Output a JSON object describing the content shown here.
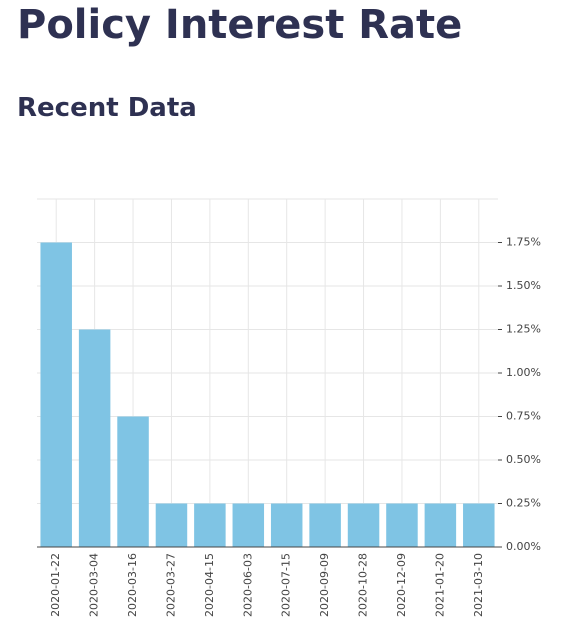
{
  "page": {
    "title": "Policy Interest Rate",
    "section_title": "Recent Data"
  },
  "colors": {
    "bar": "#7fc4e4",
    "grid": "#e6e6e6",
    "axis": "#444444",
    "heading": "#2e3152"
  },
  "chart_data": {
    "type": "bar",
    "categories": [
      "2020-01-22",
      "2020-03-04",
      "2020-03-16",
      "2020-03-27",
      "2020-04-15",
      "2020-06-03",
      "2020-07-15",
      "2020-09-09",
      "2020-10-28",
      "2020-12-09",
      "2021-01-20",
      "2021-03-10"
    ],
    "values": [
      1.75,
      1.25,
      0.75,
      0.25,
      0.25,
      0.25,
      0.25,
      0.25,
      0.25,
      0.25,
      0.25,
      0.25
    ],
    "yticks": [
      0,
      0.25,
      0.5,
      0.75,
      1.0,
      1.25,
      1.5,
      1.75
    ],
    "ytick_labels": [
      "0.00%",
      "0.25%",
      "0.50%",
      "0.75%",
      "1.00%",
      "1.25%",
      "1.50%",
      "1.75%"
    ],
    "ylim": [
      0,
      2.0
    ],
    "y_axis_side": "right",
    "grid": true
  }
}
